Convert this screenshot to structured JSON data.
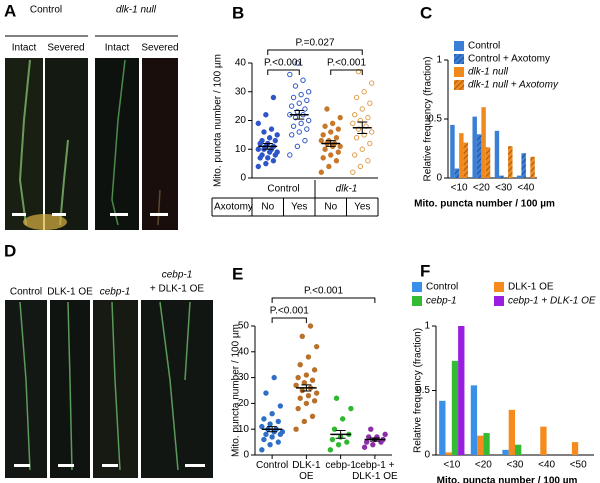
{
  "panels": {
    "A": "A",
    "B": "B",
    "C": "C",
    "D": "D",
    "E": "E",
    "F": "F"
  },
  "images_a": {
    "groups": [
      "Control",
      "dlk-1 null"
    ],
    "conditions": [
      "Intact",
      "Severed",
      "Intact",
      "Severed"
    ]
  },
  "images_d": {
    "conditions": [
      "Control",
      "DLK-1 OE",
      "cebp-1",
      "cebp-1",
      "+ DLK-1 OE"
    ]
  },
  "chart_data": [
    {
      "type": "strip",
      "panel": "B",
      "ylabel": "Mito. puncta number / 100 µm",
      "categories": [
        "No",
        "Yes",
        "No",
        "Yes"
      ],
      "category_groups": [
        "Control",
        "dlk-1"
      ],
      "table_row_label": "Axotomy",
      "groups": [
        {
          "color": "#2f55c8",
          "hollow": false,
          "values": [
            4,
            5,
            6,
            7,
            7,
            8,
            8,
            9,
            9,
            10,
            10,
            10,
            11,
            11,
            12,
            12,
            13,
            13,
            14,
            15,
            16,
            17,
            19,
            22,
            28
          ]
        },
        {
          "color": "#2f55c8",
          "hollow": true,
          "values": [
            8,
            11,
            13,
            15,
            16,
            17,
            18,
            19,
            20,
            21,
            22,
            22,
            23,
            24,
            25,
            26,
            27,
            28,
            29,
            30,
            32,
            34,
            36,
            40
          ]
        },
        {
          "color": "#c8782a",
          "hollow": false,
          "values": [
            2,
            4,
            6,
            7,
            8,
            9,
            10,
            11,
            11,
            12,
            12,
            13,
            13,
            14,
            15,
            16,
            17,
            18,
            19,
            21,
            24
          ]
        },
        {
          "color": "#e0a050",
          "hollow": true,
          "values": [
            2,
            4,
            6,
            8,
            10,
            12,
            14,
            15,
            16,
            17,
            18,
            19,
            20,
            21,
            22,
            24,
            26,
            28,
            30,
            33,
            37
          ]
        }
      ],
      "means": [
        11,
        22,
        12,
        17.5
      ],
      "errors": [
        1,
        1.5,
        1,
        2
      ],
      "annotations": [
        "P.<0.001",
        "P.<0.001",
        "P.=0.027"
      ],
      "ylim": [
        0,
        40
      ],
      "yticks": [
        0,
        10,
        20,
        30,
        40
      ]
    },
    {
      "type": "bar",
      "panel": "C",
      "ylabel": "Relative frequency (fraction)",
      "xlabel": "Mito. puncta number / 100 µm",
      "categories": [
        "<10",
        "<20",
        "<30",
        "<40"
      ],
      "series": [
        {
          "name": "Control",
          "color": "#3a7fd5",
          "hatched": false,
          "values": [
            0.45,
            0.52,
            0.4,
            0.02
          ]
        },
        {
          "name": "Control + Axotomy",
          "color": "#3a7fd5",
          "hatched": true,
          "values": [
            0.08,
            0.37,
            0.02,
            0.21
          ]
        },
        {
          "name": "dlk-1 null",
          "color": "#f08a1e",
          "hatched": false,
          "values": [
            0.38,
            0.6,
            0,
            0
          ]
        },
        {
          "name": "dlk-1 null + Axotomy",
          "color": "#f08a1e",
          "hatched": true,
          "values": [
            0.3,
            0.26,
            0.27,
            0.18
          ]
        }
      ],
      "ylim": [
        0,
        1
      ],
      "yticks": [
        0,
        0.5,
        1
      ]
    },
    {
      "type": "strip",
      "panel": "E",
      "ylabel": "Mito. puncta number / 100 µm",
      "categories": [
        "Control",
        "DLK-1 OE",
        "cebp-1",
        "cebp-1 + DLK-1 OE"
      ],
      "groups": [
        {
          "color": "#2f6fc8",
          "hollow": false,
          "values": [
            2,
            4,
            5,
            6,
            7,
            8,
            8,
            9,
            9,
            10,
            10,
            11,
            12,
            13,
            14,
            16,
            19,
            24,
            30
          ]
        },
        {
          "color": "#b8702a",
          "hollow": false,
          "values": [
            10,
            13,
            15,
            18,
            20,
            21,
            22,
            23,
            24,
            25,
            26,
            27,
            28,
            29,
            30,
            31,
            33,
            35,
            38,
            42,
            46,
            50
          ]
        },
        {
          "color": "#2fb82f",
          "hollow": false,
          "values": [
            2,
            4,
            5,
            6,
            7,
            8,
            10,
            14,
            18,
            22
          ]
        },
        {
          "color": "#8a2fa8",
          "hollow": false,
          "values": [
            3,
            4,
            5,
            5,
            6,
            6,
            7,
            7,
            8,
            10
          ]
        }
      ],
      "means": [
        10,
        26,
        8,
        6
      ],
      "errors": [
        1,
        1.2,
        1.5,
        0.6
      ],
      "annotations": [
        "P.<0.001",
        "P.<0.001"
      ],
      "ylim": [
        0,
        50
      ],
      "yticks": [
        0,
        10,
        20,
        30,
        40,
        50
      ]
    },
    {
      "type": "bar",
      "panel": "F",
      "ylabel": "Relative frequency (fraction)",
      "xlabel": "Mito. puncta number / 100 µm",
      "categories": [
        "<10",
        "<20",
        "<30",
        "<40",
        "<50"
      ],
      "series": [
        {
          "name": "Control",
          "color": "#3a8fe8",
          "hatched": false,
          "values": [
            0.42,
            0.54,
            0.04,
            0,
            0
          ]
        },
        {
          "name": "DLK-1 OE",
          "color": "#f58a1e",
          "hatched": false,
          "values": [
            0.02,
            0.15,
            0.35,
            0.22,
            0.1
          ]
        },
        {
          "name": "cebp-1",
          "color": "#33bb33",
          "hatched": false,
          "values": [
            0.73,
            0.17,
            0.08,
            0,
            0
          ]
        },
        {
          "name": "cebp-1 + DLK-1 OE",
          "color": "#9a1ee0",
          "hatched": false,
          "values": [
            1.0,
            0,
            0,
            0,
            0
          ]
        }
      ],
      "ylim": [
        0,
        1
      ],
      "yticks": [
        0,
        0.5,
        1
      ]
    }
  ]
}
